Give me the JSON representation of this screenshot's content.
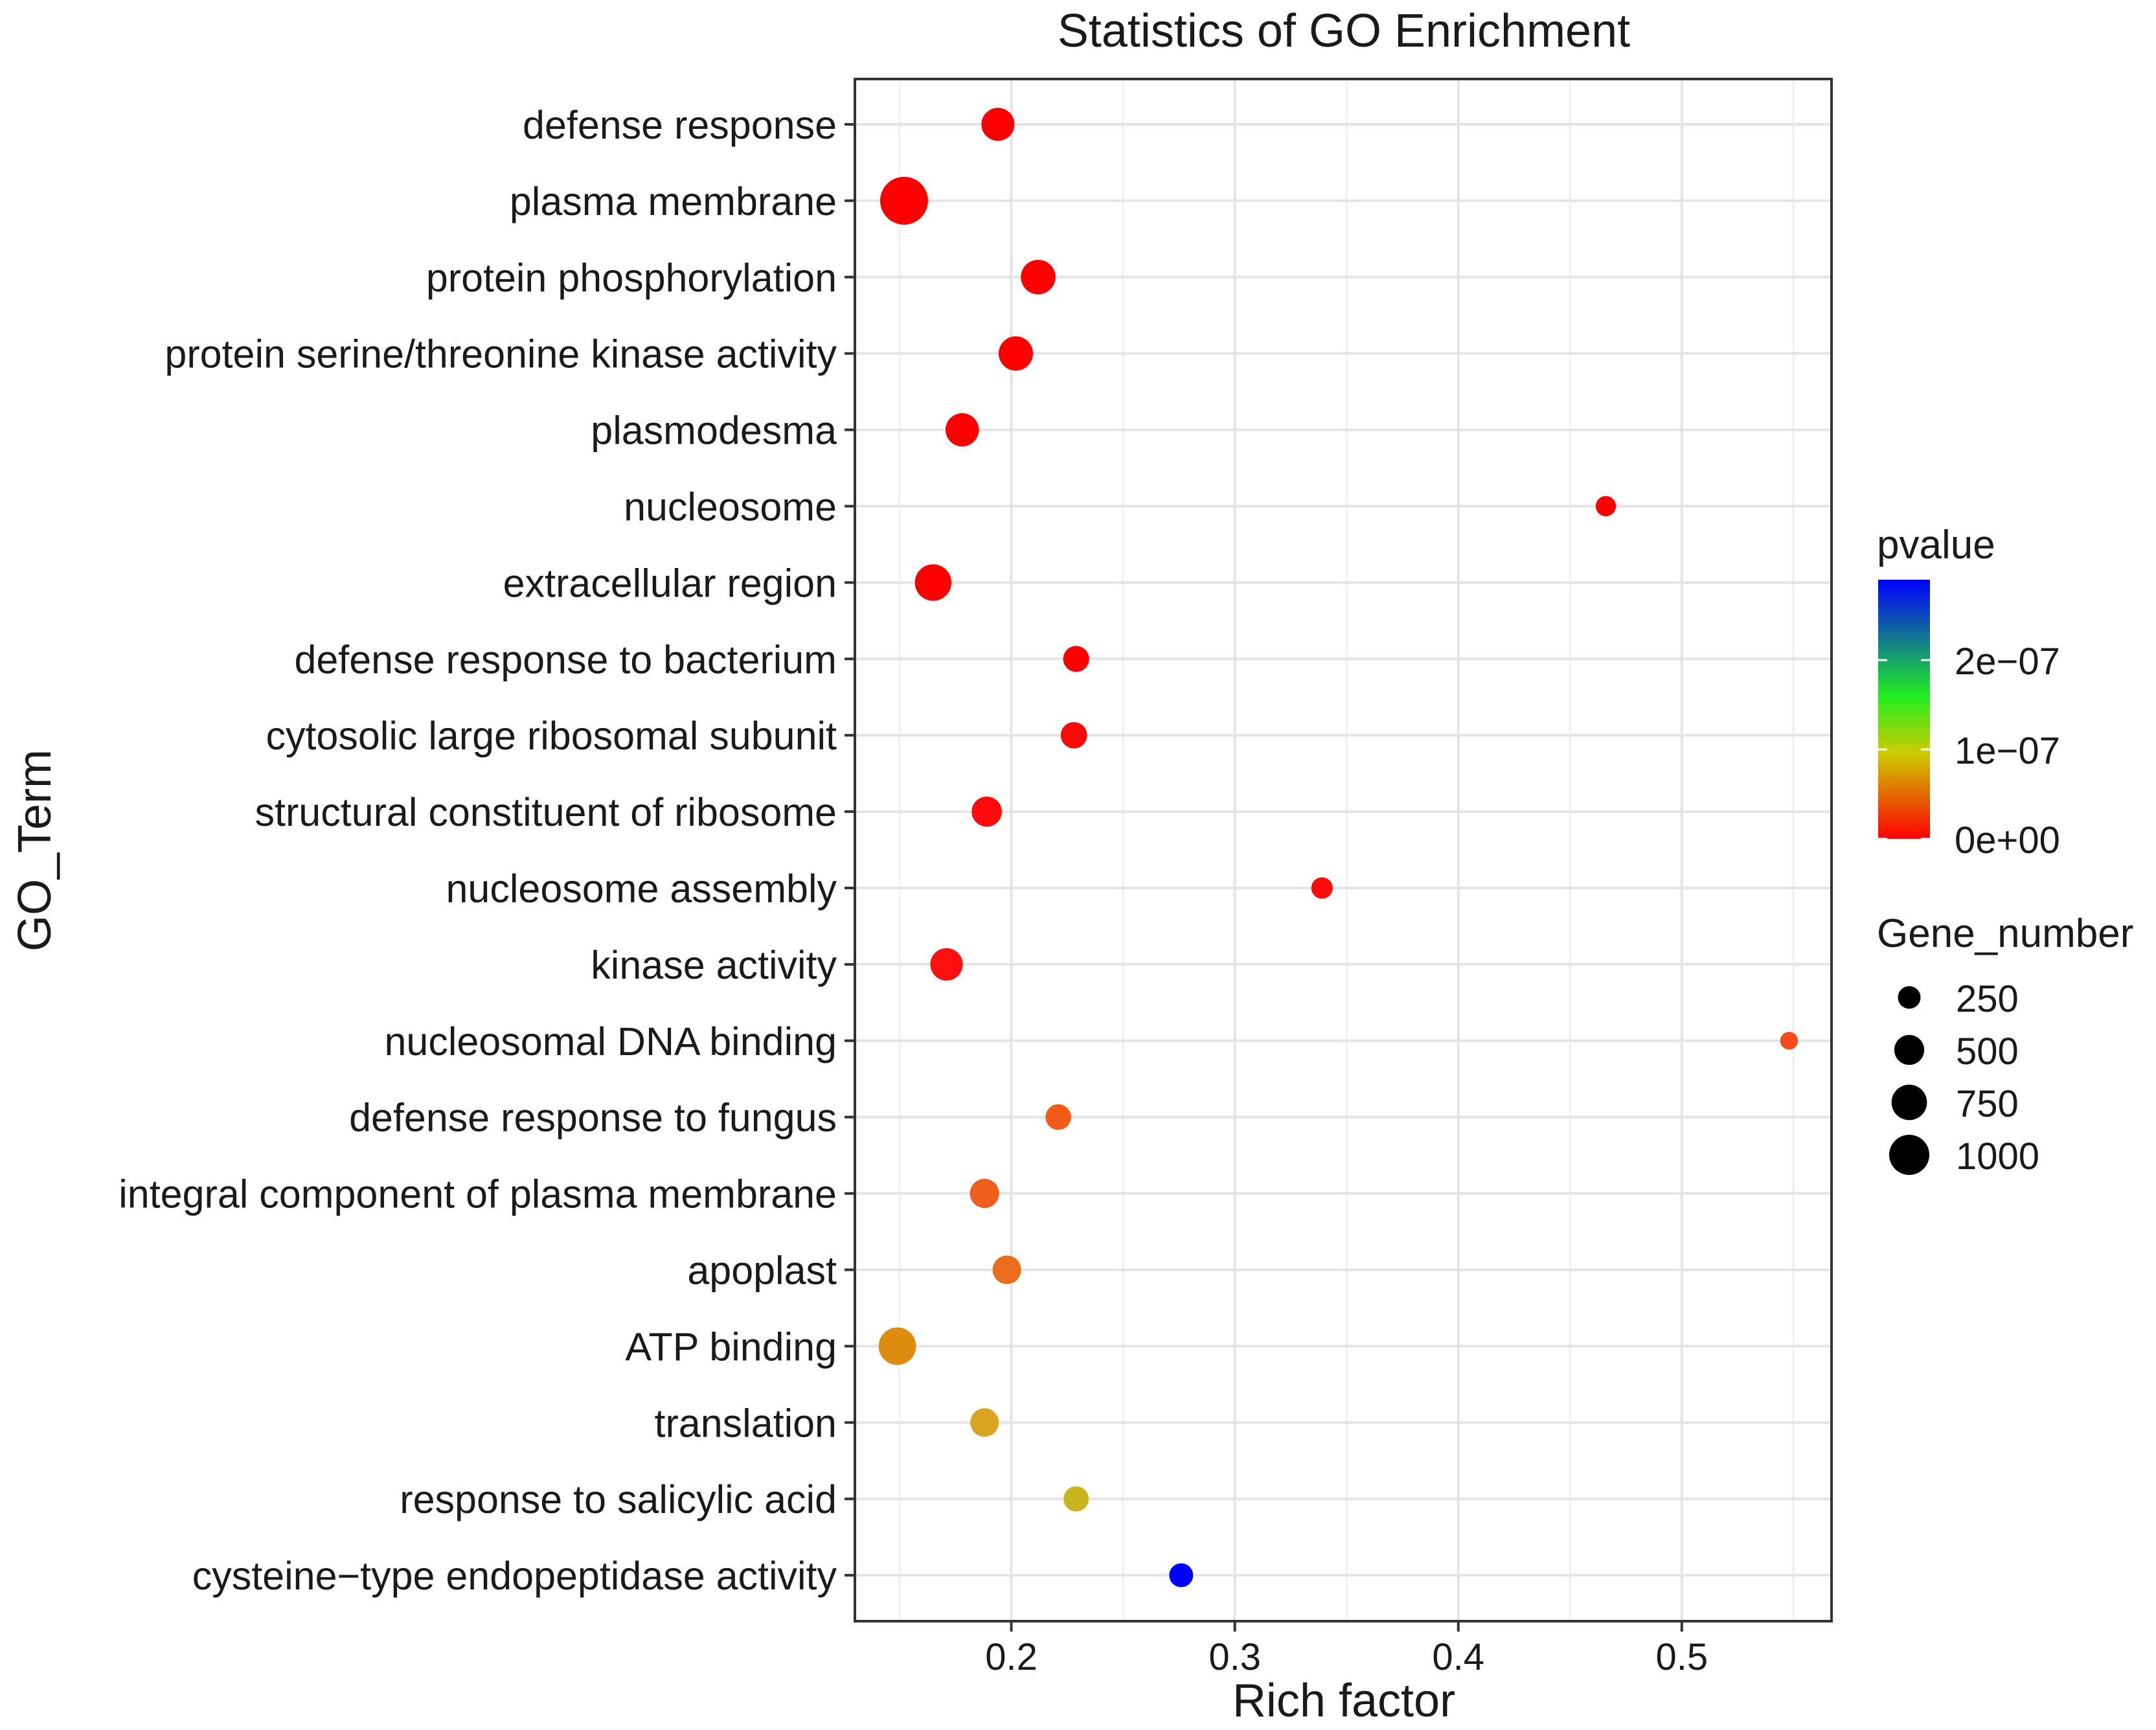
{
  "chart_data": {
    "type": "scatter",
    "title": "Statistics of GO Enrichment",
    "xlabel": "Rich factor",
    "ylabel": "GO_Term",
    "xlim": [
      0.13,
      0.567
    ],
    "x_ticks": [
      0.2,
      0.3,
      0.4,
      0.5
    ],
    "x_tick_labels": [
      "0.2",
      "0.3",
      "0.4",
      "0.5"
    ],
    "grid": true,
    "legend_placement": "right",
    "color_legend": {
      "title": "pvalue",
      "min": 0,
      "max": 2.9e-07,
      "ticks": [
        0,
        1e-07,
        2e-07
      ],
      "tick_labels": [
        "0e+00",
        "1e−07",
        "2e−07"
      ],
      "low_color": "#ff0000",
      "high_color": "#0000ff",
      "gradient_stops": [
        {
          "value": 0,
          "color": "#ff0000"
        },
        {
          "value": 0.33,
          "color": "#cccc00"
        },
        {
          "value": 0.55,
          "color": "#22ee22"
        },
        {
          "value": 1,
          "color": "#0000ff"
        }
      ]
    },
    "size_legend": {
      "title": "Gene_number",
      "values": [
        250,
        500,
        750,
        1000
      ],
      "labels": [
        "250",
        "500",
        "750",
        "1000"
      ]
    },
    "points": [
      {
        "term": "defense response",
        "x": 0.194,
        "gene_number": 420,
        "pvalue": 0,
        "color": "#ff0000"
      },
      {
        "term": "plasma membrane",
        "x": 0.152,
        "gene_number": 1150,
        "pvalue": 0,
        "color": "#ff0000"
      },
      {
        "term": "protein phosphorylation",
        "x": 0.212,
        "gene_number": 480,
        "pvalue": 0,
        "color": "#ff0000"
      },
      {
        "term": "protein serine/threonine kinase activity",
        "x": 0.202,
        "gene_number": 470,
        "pvalue": 0,
        "color": "#ff0000"
      },
      {
        "term": "plasmodesma",
        "x": 0.178,
        "gene_number": 430,
        "pvalue": 0,
        "color": "#ff0000"
      },
      {
        "term": "nucleosome",
        "x": 0.466,
        "gene_number": 80,
        "pvalue": 0,
        "color": "#ff0000"
      },
      {
        "term": "extracellular region",
        "x": 0.165,
        "gene_number": 560,
        "pvalue": 0,
        "color": "#ff0000"
      },
      {
        "term": "defense response to bacterium",
        "x": 0.229,
        "gene_number": 200,
        "pvalue": 0,
        "color": "#ff0000"
      },
      {
        "term": "cytosolic large ribosomal subunit",
        "x": 0.228,
        "gene_number": 210,
        "pvalue": 0,
        "color": "#ff0505"
      },
      {
        "term": "structural constituent of ribosome",
        "x": 0.189,
        "gene_number": 320,
        "pvalue": 2e-09,
        "color": "#ff0a0a"
      },
      {
        "term": "nucleosome assembly",
        "x": 0.339,
        "gene_number": 100,
        "pvalue": 2e-09,
        "color": "#ff0a0a"
      },
      {
        "term": "kinase activity",
        "x": 0.171,
        "gene_number": 400,
        "pvalue": 3e-09,
        "color": "#ff1010"
      },
      {
        "term": "nucleosomal DNA binding",
        "x": 0.548,
        "gene_number": 45,
        "pvalue": 1.5e-08,
        "color": "#f84a18"
      },
      {
        "term": "defense response to fungus",
        "x": 0.221,
        "gene_number": 190,
        "pvalue": 2e-08,
        "color": "#f25a18"
      },
      {
        "term": "integral component of plasma membrane",
        "x": 0.188,
        "gene_number": 290,
        "pvalue": 2.5e-08,
        "color": "#ef5e1a"
      },
      {
        "term": "apoplast",
        "x": 0.198,
        "gene_number": 270,
        "pvalue": 3e-08,
        "color": "#ec6c1e"
      },
      {
        "term": "ATP binding",
        "x": 0.149,
        "gene_number": 600,
        "pvalue": 6e-08,
        "color": "#de8c10"
      },
      {
        "term": "translation",
        "x": 0.188,
        "gene_number": 270,
        "pvalue": 7e-08,
        "color": "#d9a520"
      },
      {
        "term": "response to salicylic acid",
        "x": 0.229,
        "gene_number": 180,
        "pvalue": 9e-08,
        "color": "#c8b41e"
      },
      {
        "term": "cysteine−type endopeptidase activity",
        "x": 0.276,
        "gene_number": 150,
        "pvalue": 2.9e-07,
        "color": "#0000ff"
      }
    ]
  }
}
